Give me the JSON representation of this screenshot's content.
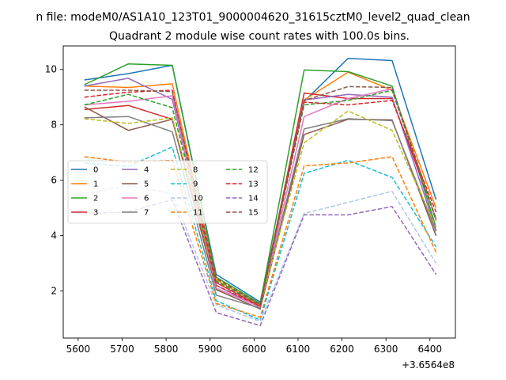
{
  "chart_data": {
    "type": "line",
    "suptitle": "n file: modeM0/AS1A10_123T01_9000004620_31615cztM0_level2_quad_clean",
    "title": "Quadrant 2 module wise count rates with 100.0s bins.",
    "xlabel": "",
    "ylabel": "",
    "x_offset_label": "+3.6564e8",
    "x": [
      5614,
      5714,
      5814,
      5914,
      6014,
      6114,
      6214,
      6314,
      6414
    ],
    "xlim": [
      5566,
      6458
    ],
    "ylim": [
      0.3,
      10.85
    ],
    "x_ticks": [
      5600,
      5700,
      5800,
      5900,
      6000,
      6100,
      6200,
      6300,
      6400
    ],
    "y_ticks": [
      2,
      4,
      6,
      8,
      10
    ],
    "legend": "center-left",
    "grid": false,
    "series": [
      {
        "name": "0",
        "color": "#1f77b4",
        "dash": false,
        "values": [
          9.62,
          9.85,
          10.15,
          2.6,
          1.6,
          8.85,
          10.4,
          10.32,
          5.3
        ]
      },
      {
        "name": "1",
        "color": "#ff7f0e",
        "dash": false,
        "values": [
          9.4,
          9.35,
          9.48,
          2.4,
          1.5,
          8.9,
          9.9,
          9.25,
          5.0
        ]
      },
      {
        "name": "2",
        "color": "#2ca02c",
        "dash": false,
        "values": [
          9.45,
          10.2,
          10.15,
          2.5,
          1.55,
          9.98,
          9.92,
          9.4,
          4.3
        ]
      },
      {
        "name": "3",
        "color": "#d62728",
        "dash": false,
        "values": [
          8.55,
          8.7,
          8.2,
          2.3,
          1.45,
          9.15,
          8.95,
          8.95,
          4.6
        ]
      },
      {
        "name": "4",
        "color": "#9467bd",
        "dash": false,
        "values": [
          9.4,
          9.68,
          8.92,
          2.2,
          1.4,
          8.9,
          9.1,
          9.0,
          4.2
        ]
      },
      {
        "name": "5",
        "color": "#8c564b",
        "dash": false,
        "values": [
          8.65,
          7.8,
          8.2,
          2.05,
          1.35,
          7.65,
          8.2,
          8.18,
          4.0
        ]
      },
      {
        "name": "6",
        "color": "#e377c2",
        "dash": false,
        "values": [
          8.72,
          8.85,
          9.05,
          2.1,
          1.42,
          8.3,
          8.95,
          9.3,
          4.55
        ]
      },
      {
        "name": "7",
        "color": "#7f7f7f",
        "dash": false,
        "values": [
          8.25,
          8.3,
          7.75,
          1.85,
          1.38,
          7.85,
          8.22,
          8.15,
          4.15
        ]
      },
      {
        "name": "8",
        "color": "#bcbd22",
        "dash": true,
        "values": [
          8.22,
          8.05,
          8.25,
          2.35,
          1.5,
          7.35,
          8.5,
          7.8,
          4.3
        ]
      },
      {
        "name": "9",
        "color": "#17becf",
        "dash": true,
        "values": [
          6.62,
          6.5,
          7.2,
          1.65,
          0.95,
          6.25,
          6.72,
          6.1,
          3.6
        ]
      },
      {
        "name": "10",
        "color": "#aec7e8",
        "dash": true,
        "values": [
          5.52,
          5.8,
          5.52,
          1.5,
          0.9,
          4.8,
          5.2,
          5.6,
          3.0
        ]
      },
      {
        "name": "11",
        "color": "#ff7f0e",
        "dash": true,
        "values": [
          6.85,
          6.65,
          6.72,
          1.55,
          1.05,
          6.52,
          6.62,
          6.85,
          3.4
        ]
      },
      {
        "name": "12",
        "color": "#2ca02c",
        "dash": true,
        "values": [
          8.72,
          9.1,
          8.62,
          2.35,
          1.5,
          8.72,
          8.88,
          9.25,
          4.55
        ]
      },
      {
        "name": "13",
        "color": "#d62728",
        "dash": true,
        "values": [
          9.0,
          9.18,
          9.25,
          2.2,
          1.45,
          8.82,
          8.72,
          8.88,
          4.85
        ]
      },
      {
        "name": "14",
        "color": "#9467bd",
        "dash": true,
        "values": [
          4.8,
          4.85,
          5.3,
          1.22,
          0.75,
          4.75,
          4.75,
          5.05,
          2.6
        ]
      },
      {
        "name": "15",
        "color": "#8c564b",
        "dash": true,
        "values": [
          9.25,
          9.25,
          9.2,
          2.45,
          1.5,
          8.88,
          9.38,
          9.35,
          4.6
        ]
      }
    ]
  }
}
